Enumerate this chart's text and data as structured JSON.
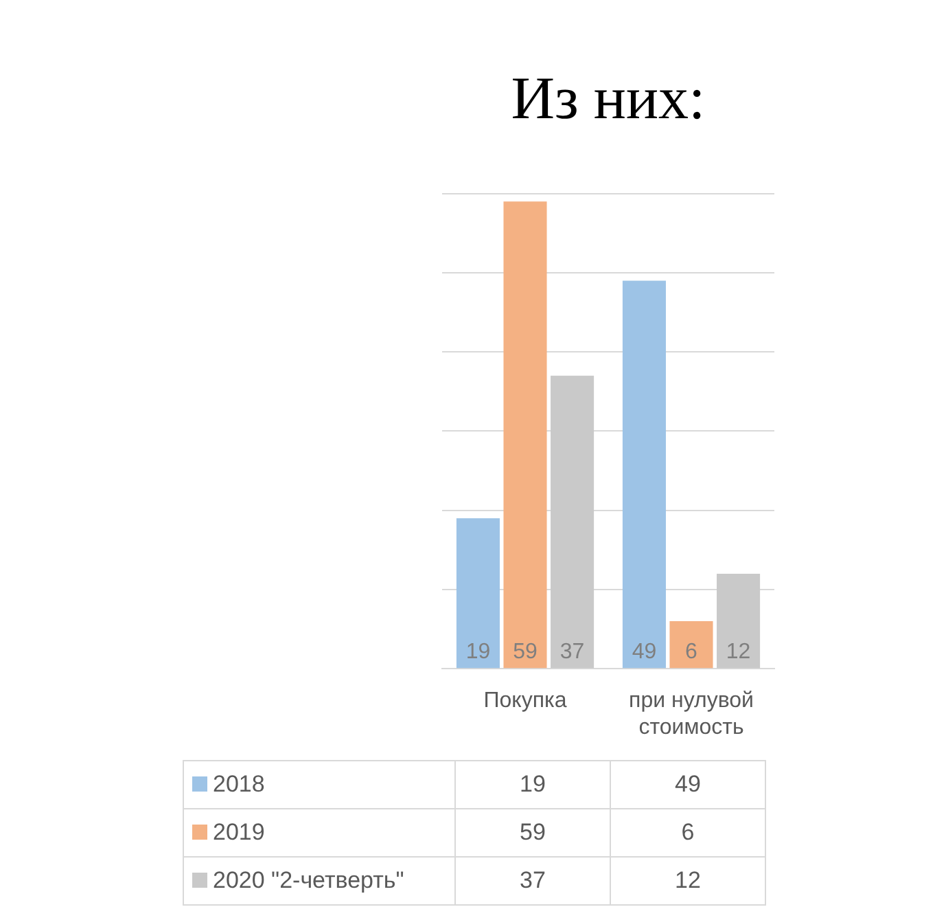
{
  "chart_data": {
    "type": "bar",
    "title": "Из них:",
    "categories": [
      "Покупка",
      "при нулувой стоимость"
    ],
    "series": [
      {
        "name": "2018",
        "color": "#9dc3e6",
        "values": [
          19,
          49
        ],
        "value_labels": [
          "19",
          "49"
        ]
      },
      {
        "name": "2019",
        "color": "#f4b183",
        "values": [
          59,
          6
        ],
        "value_labels": [
          "59",
          "6"
        ]
      },
      {
        "name": "2020 \"2-четверть\"",
        "color": "#c9c9c9",
        "values": [
          37,
          12
        ],
        "value_labels": [
          "37",
          "12"
        ]
      }
    ],
    "grid": "y",
    "tick_labels": "x",
    "legend": "bottom left"
  }
}
